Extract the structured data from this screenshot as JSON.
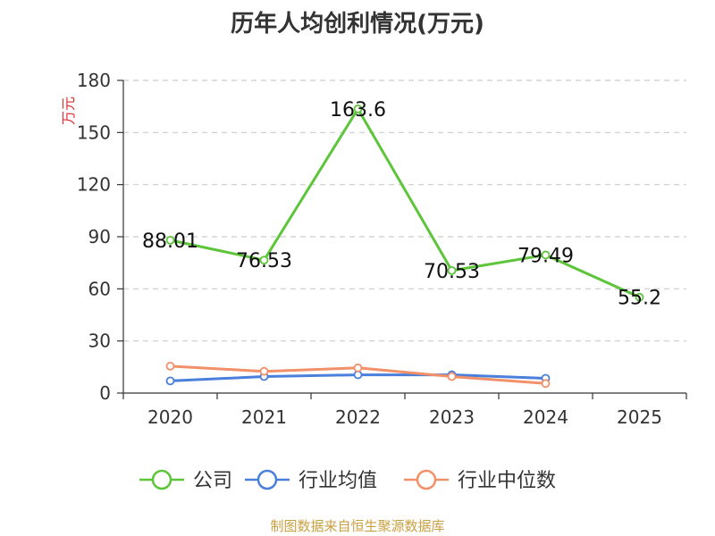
{
  "chart_data": {
    "type": "line",
    "title": "历年人均创利情况(万元)",
    "ylabel": "万元",
    "xlabel": "",
    "categories": [
      "2020",
      "2021",
      "2022",
      "2023",
      "2024",
      "2025"
    ],
    "ylim": [
      0,
      180
    ],
    "yticks": [
      0,
      30,
      60,
      90,
      120,
      150,
      180
    ],
    "grid": true,
    "legend_position": "bottom",
    "series": [
      {
        "name": "公司",
        "color": "#5cc53a",
        "values": [
          88.01,
          76.53,
          163.6,
          70.53,
          79.49,
          55.2
        ],
        "labels": [
          "88.01",
          "76.53",
          "163.6",
          "70.53",
          "79.49",
          "55.2"
        ]
      },
      {
        "name": "行业均值",
        "color": "#4a7fdc",
        "values": [
          7,
          9.5,
          10.5,
          10.5,
          8.5,
          null
        ]
      },
      {
        "name": "行业中位数",
        "color": "#f2906a",
        "values": [
          15.5,
          12.5,
          14.5,
          9.5,
          5.5,
          null
        ]
      }
    ]
  },
  "source": "制图数据来自恒生聚源数据库"
}
